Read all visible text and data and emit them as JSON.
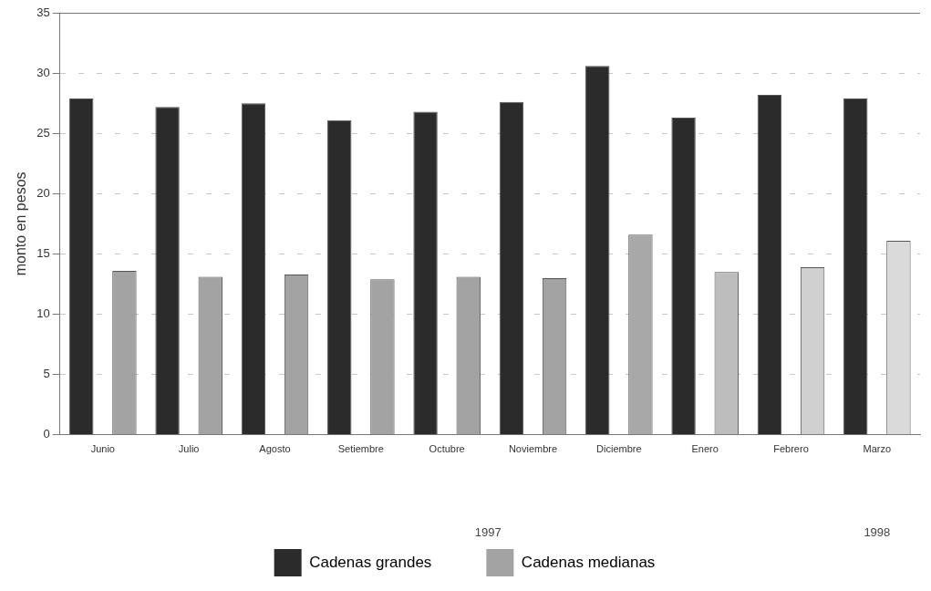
{
  "chart_data": {
    "type": "bar",
    "ylabel": "monto en pesos",
    "categories": [
      "Junio",
      "Julio",
      "Agosto",
      "Setiembre",
      "Octubre",
      "Noviembre",
      "Diciembre",
      "Enero",
      "Febrero",
      "Marzo"
    ],
    "series": [
      {
        "name": "Cadenas grandes",
        "color": "#2b2b2b",
        "values": [
          27.9,
          27.2,
          27.5,
          26.1,
          26.8,
          27.6,
          30.6,
          26.3,
          28.2,
          27.9
        ]
      },
      {
        "name": "Cadenas medianas",
        "color": "#a3a3a3",
        "colors": [
          "#a3a3a3",
          "#a3a3a3",
          "#a3a3a3",
          "#a3a3a3",
          "#a3a3a3",
          "#a3a3a3",
          "#a8a8a8",
          "#bdbdbd",
          "#d0d0d0",
          "#dadada"
        ],
        "values": [
          13.6,
          13.1,
          13.3,
          12.9,
          13.1,
          13.0,
          16.6,
          13.5,
          13.9,
          16.1
        ]
      }
    ],
    "ylim": [
      0,
      35
    ],
    "yticks": [
      0,
      5,
      10,
      15,
      20,
      25,
      30,
      35
    ],
    "grid": "y",
    "line_style": "dashed",
    "legend": "bottom",
    "annotations": [
      "1997",
      "1998"
    ]
  }
}
